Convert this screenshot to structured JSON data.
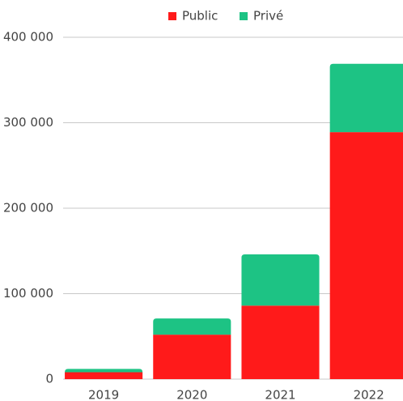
{
  "chart_data": {
    "type": "stacked_bar",
    "categories": [
      "2019",
      "2020",
      "2021",
      "2022"
    ],
    "series": [
      {
        "name": "Public",
        "color": "#ff1a1a",
        "values": [
          8000,
          52000,
          86000,
          289000
        ]
      },
      {
        "name": "Privé",
        "color": "#1dc384",
        "values": [
          4000,
          19000,
          60000,
          80000
        ]
      }
    ],
    "ylim": [
      0,
      400000
    ],
    "yticks": [
      0,
      {
        "value": 100000,
        "label": "100 000"
      },
      {
        "value": 200000,
        "label": "200 000"
      },
      {
        "value": 300000,
        "label": "300 000"
      },
      {
        "value": 400000,
        "label": "400 000"
      }
    ],
    "grid": true,
    "legend": "top"
  }
}
